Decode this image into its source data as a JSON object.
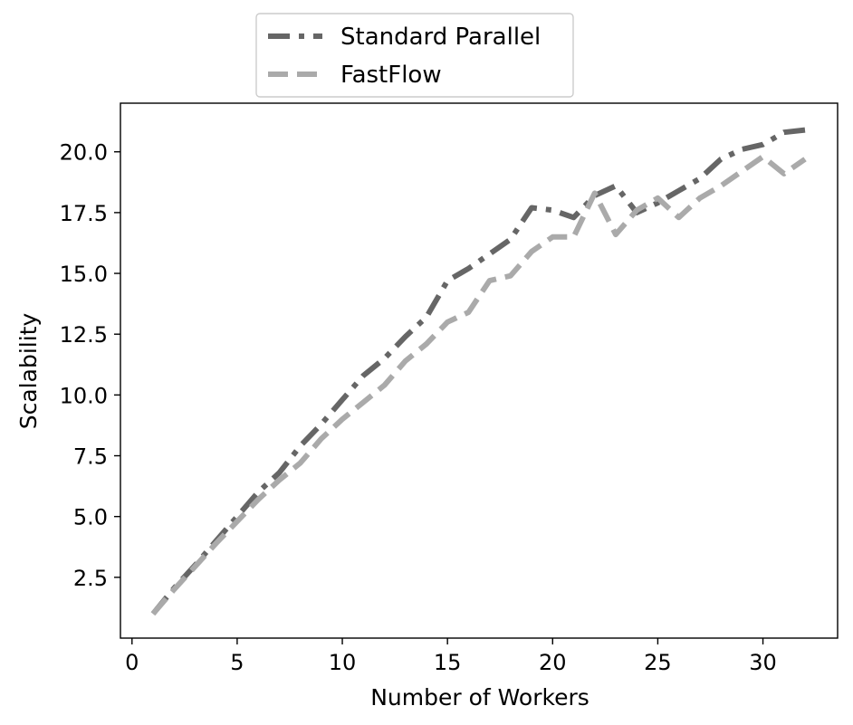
{
  "chart_data": {
    "type": "line",
    "title": "",
    "xlabel": "Number of Workers",
    "ylabel": "Scalability",
    "xlim": [
      -0.55,
      33.55
    ],
    "ylim": [
      0.0,
      22.0
    ],
    "xticks": [
      0,
      5,
      10,
      15,
      20,
      25,
      30
    ],
    "xtick_labels": [
      "0",
      "5",
      "10",
      "15",
      "20",
      "25",
      "30"
    ],
    "yticks": [
      2.5,
      5.0,
      7.5,
      10.0,
      12.5,
      15.0,
      17.5,
      20.0
    ],
    "ytick_labels": [
      "2.5",
      "5.0",
      "7.5",
      "10.0",
      "12.5",
      "15.0",
      "17.5",
      "20.0"
    ],
    "grid": false,
    "legend_position": "top-center, above plot",
    "x": [
      1,
      2,
      3,
      4,
      5,
      6,
      7,
      8,
      9,
      10,
      11,
      12,
      13,
      14,
      15,
      16,
      17,
      18,
      19,
      20,
      21,
      22,
      23,
      24,
      25,
      26,
      27,
      28,
      29,
      30,
      31,
      32
    ],
    "series": [
      {
        "name": "Standard Parallel",
        "color": "#666666",
        "line_style": "dash-dot",
        "values": [
          1.0,
          2.05,
          3.0,
          4.0,
          5.0,
          6.0,
          6.8,
          7.9,
          8.8,
          9.8,
          10.8,
          11.5,
          12.4,
          13.2,
          14.7,
          15.2,
          15.8,
          16.4,
          17.7,
          17.6,
          17.3,
          18.2,
          18.6,
          17.5,
          17.9,
          18.4,
          18.9,
          19.7,
          20.1,
          20.3,
          20.8,
          20.9
        ]
      },
      {
        "name": "FastFlow",
        "color": "#aaaaaa",
        "line_style": "dashed",
        "values": [
          1.0,
          2.0,
          2.95,
          3.9,
          4.8,
          5.7,
          6.5,
          7.2,
          8.2,
          9.0,
          9.7,
          10.4,
          11.4,
          12.1,
          13.0,
          13.4,
          14.7,
          14.9,
          15.9,
          16.5,
          16.5,
          18.3,
          16.6,
          17.6,
          18.1,
          17.3,
          18.1,
          18.6,
          19.2,
          19.8,
          19.1,
          19.7
        ]
      }
    ]
  }
}
